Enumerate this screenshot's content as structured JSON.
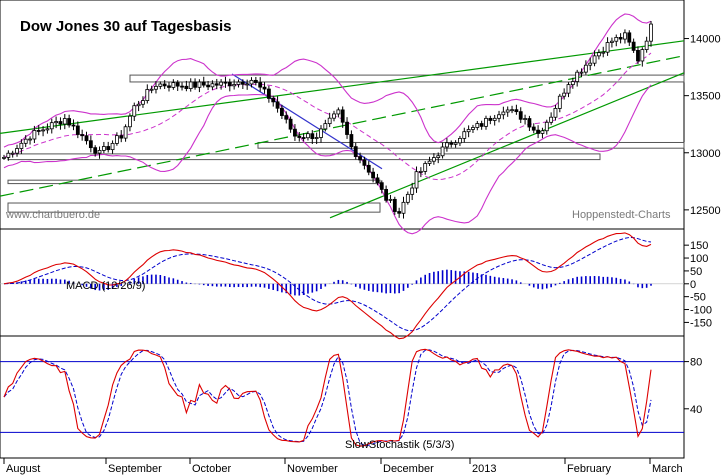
{
  "title": "Dow Jones 30 auf Tagesbasis",
  "watermark_left": "www.chartbuero.de",
  "watermark_right": "Hoppenstedt-Charts",
  "colors": {
    "background": "#ffffff",
    "candle": "#000000",
    "bollinger": "#cc33cc",
    "bollinger_mid": "#cc33cc",
    "trend_green": "#009900",
    "trend_blue": "#3333cc",
    "support_box": "#555555",
    "macd_line": "#dd0000",
    "signal_line": "#0000cc",
    "histogram": "#0000cc",
    "stoch_k": "#dd0000",
    "stoch_d": "#0000cc",
    "stoch_levels": "#0000cc"
  },
  "x_axis": {
    "months": [
      "August",
      "September",
      "October",
      "November",
      "December",
      "2013",
      "February",
      "March"
    ]
  },
  "chart_data": [
    {
      "type": "candlestick",
      "name": "price",
      "y_ticks": [
        12500,
        13000,
        13500,
        14000
      ],
      "ylim": [
        12350,
        14320
      ],
      "indicators": [
        "Bollinger Bands",
        "trend channels",
        "horizontal support/resistance zones"
      ],
      "close_anchors": [
        {
          "month": "August",
          "value": 13050
        },
        {
          "month": "September",
          "value": 13500
        },
        {
          "month": "October",
          "value": 13600
        },
        {
          "month": "November",
          "value": 12600
        },
        {
          "month": "December",
          "value": 13050
        },
        {
          "month": "2013",
          "value": 13400
        },
        {
          "month": "February",
          "value": 13950
        },
        {
          "month": "March",
          "value": 14120
        }
      ]
    },
    {
      "type": "line",
      "name": "MACD (12/26/9)",
      "label": "MACD (12/26/9)",
      "y_ticks": [
        150,
        100,
        50,
        0,
        -50,
        -100,
        -150
      ],
      "ylim": [
        -195,
        205
      ],
      "series_names": [
        "MACD",
        "Signal",
        "Histogram"
      ]
    },
    {
      "type": "line",
      "name": "Slow Stochastik (5/3/3)",
      "label": "SlowStochastik (5/3/3)",
      "y_ticks": [
        80,
        40
      ],
      "levels": [
        80,
        20
      ],
      "ylim": [
        0,
        100
      ]
    }
  ]
}
